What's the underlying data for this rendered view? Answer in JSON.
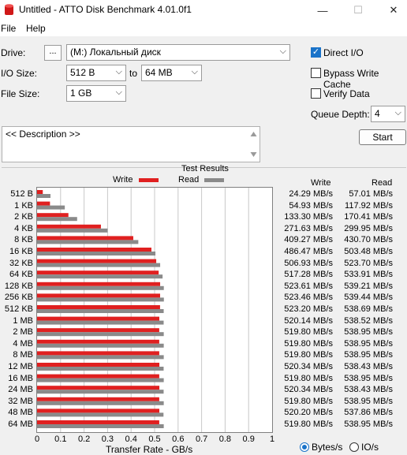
{
  "window": {
    "title": "Untitled - ATTO Disk Benchmark 4.01.0f1",
    "minimize_glyph": "—",
    "maximize_glyph": "☐",
    "close_glyph": "✕"
  },
  "menu": {
    "file": "File",
    "help": "Help"
  },
  "settings": {
    "drive_label": "Drive:",
    "browse_label": "...",
    "drive_value": "(M:) Локальный диск",
    "io_size_label": "I/O Size:",
    "io_from": "512 B",
    "io_to_word": "to",
    "io_to": "64 MB",
    "file_size_label": "File Size:",
    "file_size": "1 GB",
    "direct_io_label": "Direct I/O",
    "direct_io_checked": true,
    "bypass_cache_label": "Bypass Write Cache",
    "bypass_cache_checked": false,
    "verify_label": "Verify Data",
    "verify_checked": false,
    "queue_depth_label": "Queue Depth:",
    "queue_depth": "4",
    "description": "<< Description >>",
    "start_label": "Start"
  },
  "results": {
    "title": "Test Results",
    "write_legend": "Write",
    "read_legend": "Read",
    "write_col": "Write",
    "read_col": "Read",
    "xlabel": "Transfer Rate - GB/s",
    "units_bytes": "Bytes/s",
    "units_io": "IO/s",
    "units_selected": "Bytes/s"
  },
  "colors": {
    "write": "#e02020",
    "read": "#8a8a8a",
    "accent": "#1a73c9"
  },
  "chart_data": {
    "type": "bar",
    "title": "Test Results",
    "xlabel": "Transfer Rate - GB/s",
    "xlim": [
      0,
      1
    ],
    "xticks": [
      "0",
      "0.1",
      "0.2",
      "0.3",
      "0.4",
      "0.5",
      "0.6",
      "0.7",
      "0.8",
      "0.9",
      "1"
    ],
    "categories": [
      "512 B",
      "1 KB",
      "2 KB",
      "4 KB",
      "8 KB",
      "16 KB",
      "32 KB",
      "64 KB",
      "128 KB",
      "256 KB",
      "512 KB",
      "1 MB",
      "2 MB",
      "4 MB",
      "8 MB",
      "12 MB",
      "16 MB",
      "24 MB",
      "32 MB",
      "48 MB",
      "64 MB"
    ],
    "series": [
      {
        "name": "Write",
        "color": "#e02020",
        "values": [
          0.02429,
          0.05493,
          0.1333,
          0.27163,
          0.40927,
          0.48647,
          0.50693,
          0.51728,
          0.52361,
          0.52346,
          0.5232,
          0.52014,
          0.5198,
          0.5198,
          0.5198,
          0.52034,
          0.5198,
          0.52034,
          0.5198,
          0.5202,
          0.5198
        ],
        "labels": [
          "24.29 MB/s",
          "54.93 MB/s",
          "133.30 MB/s",
          "271.63 MB/s",
          "409.27 MB/s",
          "486.47 MB/s",
          "506.93 MB/s",
          "517.28 MB/s",
          "523.61 MB/s",
          "523.46 MB/s",
          "523.20 MB/s",
          "520.14 MB/s",
          "519.80 MB/s",
          "519.80 MB/s",
          "519.80 MB/s",
          "520.34 MB/s",
          "519.80 MB/s",
          "520.34 MB/s",
          "519.80 MB/s",
          "520.20 MB/s",
          "519.80 MB/s"
        ]
      },
      {
        "name": "Read",
        "color": "#8a8a8a",
        "values": [
          0.05701,
          0.11792,
          0.17041,
          0.29995,
          0.4307,
          0.50348,
          0.5237,
          0.53391,
          0.53921,
          0.53944,
          0.53869,
          0.53852,
          0.53895,
          0.53895,
          0.53895,
          0.53843,
          0.53895,
          0.53843,
          0.53895,
          0.53786,
          0.53895
        ],
        "labels": [
          "57.01 MB/s",
          "117.92 MB/s",
          "170.41 MB/s",
          "299.95 MB/s",
          "430.70 MB/s",
          "503.48 MB/s",
          "523.70 MB/s",
          "533.91 MB/s",
          "539.21 MB/s",
          "539.44 MB/s",
          "538.69 MB/s",
          "538.52 MB/s",
          "538.95 MB/s",
          "538.95 MB/s",
          "538.95 MB/s",
          "538.43 MB/s",
          "538.95 MB/s",
          "538.43 MB/s",
          "538.95 MB/s",
          "537.86 MB/s",
          "538.95 MB/s"
        ]
      }
    ]
  }
}
